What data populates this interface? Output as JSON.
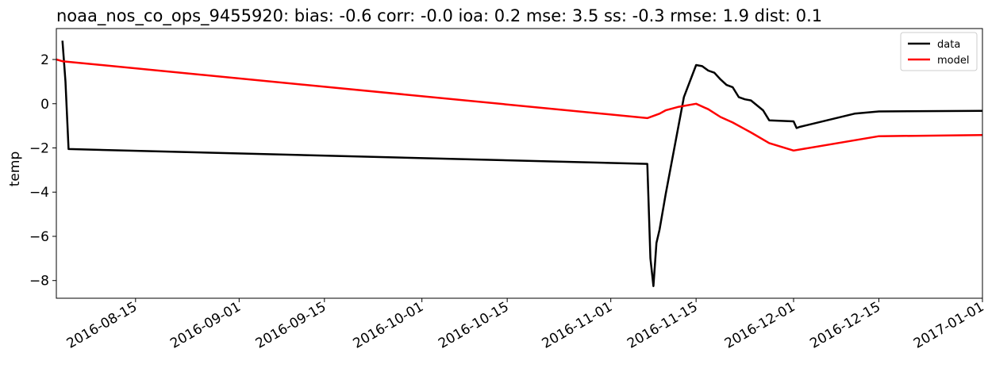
{
  "chart_data": {
    "type": "line",
    "title": "noaa_nos_co_ops_9455920: bias: -0.6  corr: -0.0  ioa: 0.2  mse: 3.5  ss: -0.3  rmse: 1.9  dist: 0.1",
    "xlabel": "",
    "ylabel": "temp",
    "xlim": [
      "2016-08-02",
      "2017-01-01"
    ],
    "ylim": [
      -8.8,
      3.4
    ],
    "x_ticks": [
      "2016-08-15",
      "2016-09-01",
      "2016-09-15",
      "2016-10-01",
      "2016-10-15",
      "2016-11-01",
      "2016-11-15",
      "2016-12-01",
      "2016-12-15",
      "2017-01-01"
    ],
    "y_ticks": [
      -8,
      -6,
      -4,
      -2,
      0,
      2
    ],
    "y_tick_labels": [
      "−8",
      "−6",
      "−4",
      "−2",
      "0",
      "2"
    ],
    "legend_position": "top-right",
    "grid": false,
    "series": [
      {
        "name": "data",
        "color": "#000000",
        "points": [
          [
            "2016-08-03",
            2.85
          ],
          [
            "2016-08-03T12:00",
            1.0
          ],
          [
            "2016-08-04",
            -2.05
          ],
          [
            "2016-11-07",
            -2.72
          ],
          [
            "2016-11-07T12:00",
            -7.0
          ],
          [
            "2016-11-08",
            -8.25
          ],
          [
            "2016-11-08T12:00",
            -6.3
          ],
          [
            "2016-11-09",
            -5.7
          ],
          [
            "2016-11-10",
            -4.1
          ],
          [
            "2016-11-13",
            0.3
          ],
          [
            "2016-11-15",
            1.75
          ],
          [
            "2016-11-16",
            1.7
          ],
          [
            "2016-11-17",
            1.5
          ],
          [
            "2016-11-18",
            1.4
          ],
          [
            "2016-11-19",
            1.1
          ],
          [
            "2016-11-20",
            0.85
          ],
          [
            "2016-11-21",
            0.75
          ],
          [
            "2016-11-22",
            0.3
          ],
          [
            "2016-11-23",
            0.2
          ],
          [
            "2016-11-24",
            0.15
          ],
          [
            "2016-11-26",
            -0.3
          ],
          [
            "2016-11-27",
            -0.75
          ],
          [
            "2016-12-01",
            -0.8
          ],
          [
            "2016-12-01T12:00",
            -1.1
          ],
          [
            "2016-12-02",
            -1.05
          ],
          [
            "2016-12-11",
            -0.45
          ],
          [
            "2016-12-15",
            -0.35
          ],
          [
            "2017-01-01",
            -0.32
          ]
        ]
      },
      {
        "name": "model",
        "color": "#ff0000",
        "points": [
          [
            "2016-08-02",
            2.0
          ],
          [
            "2016-08-03",
            1.92
          ],
          [
            "2016-11-07",
            -0.65
          ],
          [
            "2016-11-09",
            -0.45
          ],
          [
            "2016-11-10",
            -0.3
          ],
          [
            "2016-11-12",
            -0.15
          ],
          [
            "2016-11-15",
            0.0
          ],
          [
            "2016-11-17",
            -0.25
          ],
          [
            "2016-11-19",
            -0.6
          ],
          [
            "2016-11-21",
            -0.85
          ],
          [
            "2016-11-23",
            -1.15
          ],
          [
            "2016-11-24",
            -1.3
          ],
          [
            "2016-11-27",
            -1.78
          ],
          [
            "2016-12-01",
            -2.12
          ],
          [
            "2016-12-15",
            -1.47
          ],
          [
            "2017-01-01",
            -1.42
          ]
        ]
      }
    ]
  }
}
